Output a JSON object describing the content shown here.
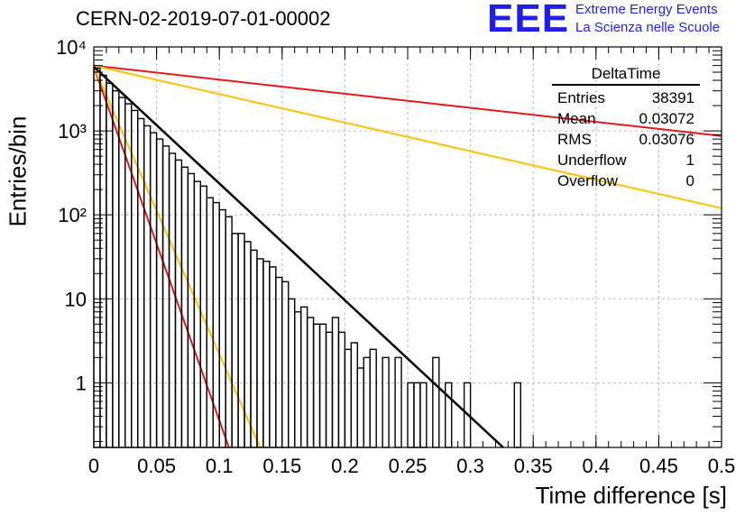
{
  "header": {
    "title": "CERN-02-2019-07-01-00002",
    "logo_text": "EEE",
    "logo_line1": "Extreme Energy Events",
    "logo_line2": "La Scienza nelle Scuole"
  },
  "stats_box": {
    "name": "DeltaTime",
    "rows": [
      {
        "label": "Entries",
        "value": "38391"
      },
      {
        "label": "Mean",
        "value": "0.03072"
      },
      {
        "label": "RMS",
        "value": "0.03076"
      },
      {
        "label": "Underflow",
        "value": "1"
      },
      {
        "label": "Overflow",
        "value": "0"
      }
    ]
  },
  "colors": {
    "histogram": "#000000",
    "fit": "#000000",
    "red": "#e31a1c",
    "orange": "#ffc000",
    "grid": "#bbbbbb"
  },
  "chart_data": {
    "type": "line",
    "title": "CERN-02-2019-07-01-00002",
    "xlabel": "Time difference [s]",
    "ylabel": "Entries/bin",
    "xlim": [
      0,
      0.5
    ],
    "ylim": [
      0.17,
      10000
    ],
    "yscale": "log",
    "grid": true,
    "legend": "top-right stats box",
    "xticks": [
      "0",
      "0.05",
      "0.1",
      "0.15",
      "0.2",
      "0.25",
      "0.3",
      "0.35",
      "0.4",
      "0.45",
      "0.5"
    ],
    "yticks": [
      {
        "value": 1,
        "label": "1"
      },
      {
        "value": 10,
        "label": "10"
      },
      {
        "value": 100,
        "label": "10²"
      },
      {
        "value": 1000,
        "label": "10³"
      },
      {
        "value": 10000,
        "label": "10⁴"
      }
    ],
    "histogram": {
      "bin_width": 0.005,
      "counts": [
        5600,
        4600,
        3700,
        3000,
        2500,
        2100,
        1750,
        1400,
        1150,
        950,
        800,
        660,
        540,
        450,
        370,
        310,
        250,
        220,
        160,
        140,
        115,
        95,
        60,
        60,
        48,
        38,
        30,
        28,
        24,
        18,
        16,
        10,
        7,
        8,
        6,
        5,
        5,
        4,
        6,
        4,
        2.5,
        3,
        1.5,
        2,
        2.5,
        0,
        2,
        0,
        2,
        0,
        1,
        1,
        1,
        0,
        2,
        0,
        1,
        0,
        0,
        1,
        0,
        0,
        0,
        0,
        0,
        0,
        0,
        1,
        0,
        0,
        0,
        0,
        0,
        0,
        0,
        0,
        0,
        0,
        0,
        0,
        0,
        0,
        0,
        0,
        0,
        0,
        0,
        0,
        0,
        0,
        0,
        0,
        0,
        0,
        0,
        0,
        0,
        0,
        0,
        0
      ]
    },
    "series": [
      {
        "x": [
          0,
          0.3261
        ],
        "y": [
          5800,
          0.17
        ]
      },
      {
        "x": [
          0,
          0.1076
        ],
        "y": [
          5800,
          0.17
        ]
      },
      {
        "x": [
          0,
          0.1325
        ],
        "y": [
          5800,
          0.17
        ]
      },
      {
        "x": [
          0,
          0.5
        ],
        "y": [
          6000,
          870
        ]
      },
      {
        "x": [
          0,
          0.5
        ],
        "y": [
          6000,
          120
        ]
      }
    ]
  }
}
